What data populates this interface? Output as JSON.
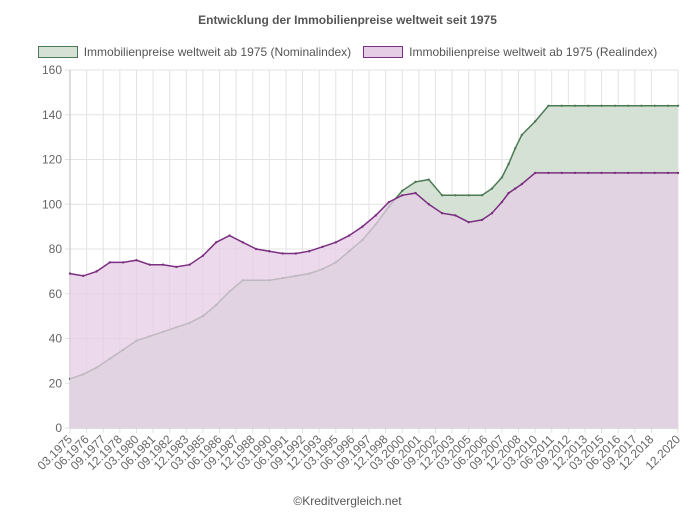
{
  "chart_data": {
    "type": "area",
    "title": "Entwicklung der Immobilienpreise weltweit seit 1975",
    "xlabel": "",
    "ylabel": "",
    "ylim": [
      0,
      160
    ],
    "yticks": [
      0,
      20,
      40,
      60,
      80,
      100,
      120,
      140,
      160
    ],
    "x": [
      1975.0,
      1976.0,
      1977.0,
      1978.0,
      1979.0,
      1980.0,
      1981.0,
      1982.0,
      1983.0,
      1984.0,
      1985.0,
      1986.0,
      1987.0,
      1988.0,
      1989.0,
      1990.0,
      1991.0,
      1992.0,
      1993.0,
      1994.0,
      1995.0,
      1996.0,
      1997.0,
      1998.0,
      1999.0,
      2000.0,
      2001.0,
      2002.0,
      2003.0,
      2004.0,
      2005.0,
      2006.0,
      2006.75,
      2007.5,
      2008.0,
      2008.5,
      2009.0,
      2010.0,
      2011.0,
      2012.0,
      2013.0,
      2014.0,
      2015.0,
      2016.0,
      2017.0,
      2018.0,
      2019.0,
      2020.0,
      2020.75
    ],
    "x_tick_labels": [
      "03.1975",
      "06.1976",
      "09.1977",
      "12.1978",
      "03.1980",
      "06.1981",
      "09.1982",
      "12.1983",
      "03.1985",
      "06.1986",
      "09.1987",
      "12.1988",
      "03.1990",
      "06.1991",
      "09.1992",
      "12.1993",
      "03.1995",
      "06.1996",
      "09.1997",
      "12.1998",
      "03.2000",
      "06.2001",
      "09.2002",
      "12.2003",
      "03.2005",
      "06.2006",
      "09.2007",
      "12.2008",
      "03.2010",
      "06.2011",
      "09.2012",
      "12.2013",
      "03.2015",
      "06.2016",
      "09.2017",
      "12.2018",
      "12.2020"
    ],
    "x_tick_positions": [
      1975.0,
      1976.25,
      1977.5,
      1978.75,
      1980.0,
      1981.25,
      1982.5,
      1983.75,
      1985.0,
      1986.25,
      1987.5,
      1988.75,
      1990.0,
      1991.25,
      1992.5,
      1993.75,
      1995.0,
      1996.25,
      1997.5,
      1998.75,
      2000.0,
      2001.25,
      2002.5,
      2003.75,
      2005.0,
      2006.25,
      2007.5,
      2008.75,
      2010.0,
      2011.25,
      2012.5,
      2013.75,
      2015.0,
      2016.25,
      2017.5,
      2018.75,
      2020.75
    ],
    "series": [
      {
        "name": "Immobilienpreise weltweit ab 1975 (Nominalindex)",
        "color": "#4c7a55",
        "fill": "#d5e1d5",
        "values": [
          22,
          24,
          27,
          31,
          35,
          39,
          41,
          43,
          45,
          47,
          50,
          55,
          61,
          66,
          66,
          66,
          67,
          68,
          69,
          71,
          74,
          79,
          84,
          91,
          99,
          106,
          110,
          111,
          104,
          104,
          104,
          104,
          107,
          112,
          118,
          125,
          131,
          137,
          144,
          144,
          144,
          144,
          144,
          144,
          144,
          144,
          144,
          144,
          144
        ]
      },
      {
        "name": "Immobilienpreise weltweit ab 1975 (Realindex)",
        "color": "#7b2f80",
        "fill": "#e6cde6",
        "values": [
          69,
          68,
          70,
          74,
          74,
          75,
          73,
          73,
          72,
          73,
          77,
          83,
          86,
          83,
          80,
          79,
          78,
          78,
          79,
          81,
          83,
          86,
          90,
          95,
          101,
          104,
          105,
          100,
          96,
          95,
          92,
          93,
          96,
          101,
          105,
          107,
          109,
          114,
          114,
          114,
          114,
          114,
          114,
          114,
          114,
          114,
          114,
          114,
          114
        ]
      }
    ]
  },
  "credit": "©Kreditvergleich.net"
}
